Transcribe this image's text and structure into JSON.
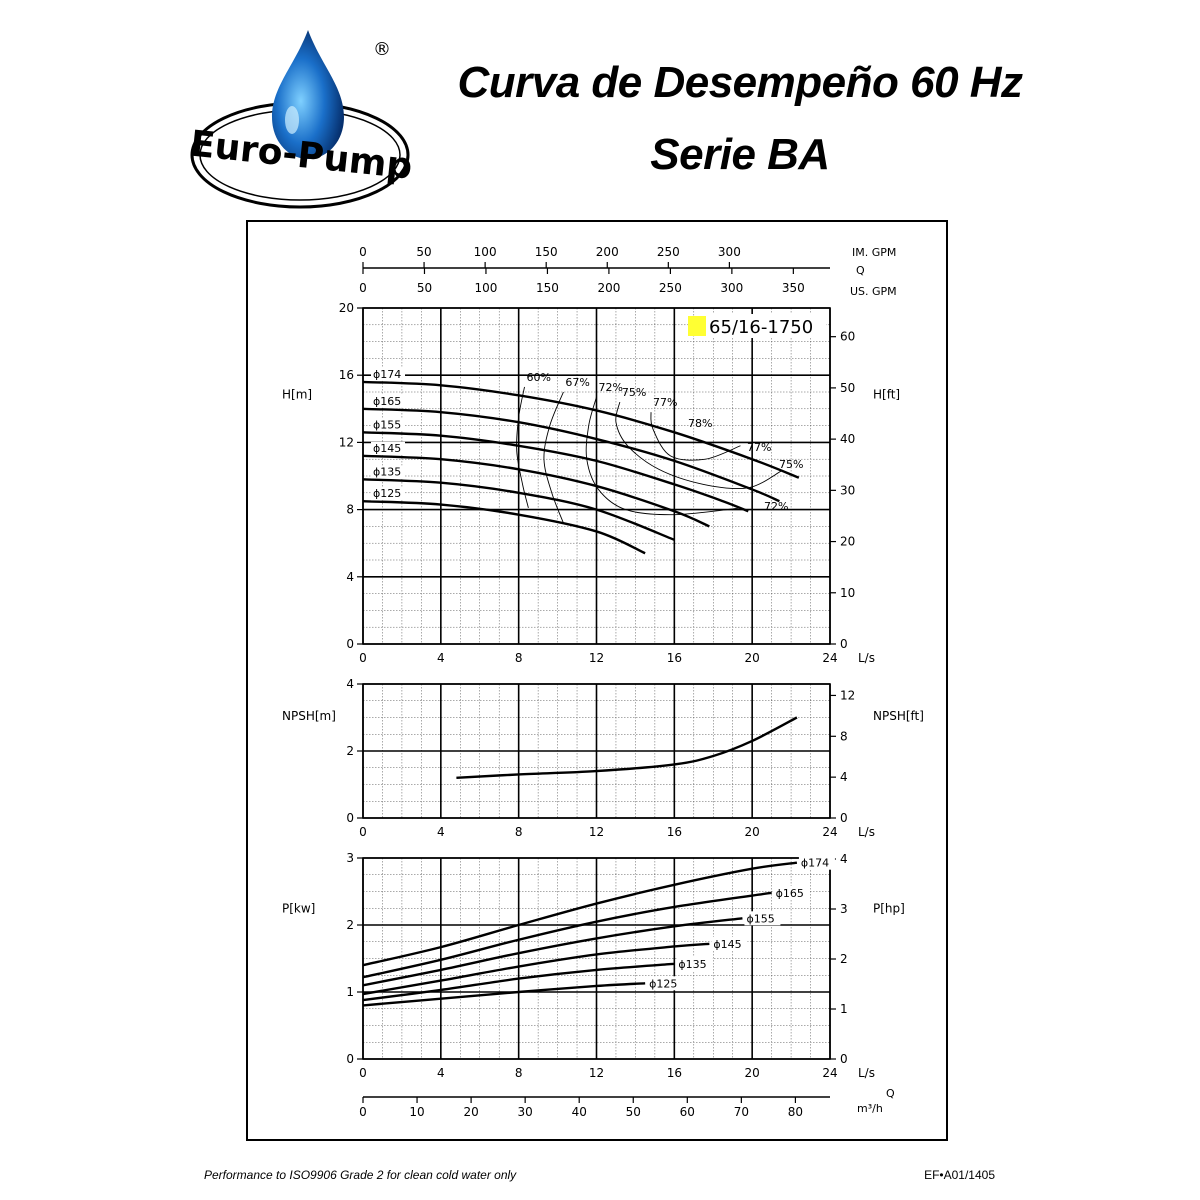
{
  "header": {
    "brand": "Euro-Pump",
    "registered": "®",
    "title_line1": "Curva de Desempeño 60 Hz",
    "title_line2": "Serie BA"
  },
  "footer": {
    "note": "Performance to ISO9906 Grade 2 for clean cold water only",
    "code": "EF•A01/1405"
  },
  "colors": {
    "model_badge": "#ffff33",
    "ink": "#000000",
    "drop_blue": "#1a6fc9"
  },
  "chart_data": {
    "type": "line",
    "model": "65/16-1750",
    "top_axes": {
      "im_gpm_label": "IM. GPM",
      "q_label": "Q",
      "us_gpm_label": "US. GPM",
      "im_gpm_ticks": [
        0,
        50,
        100,
        150,
        200,
        250,
        300
      ],
      "us_gpm_ticks": [
        0,
        50,
        100,
        150,
        200,
        250,
        300,
        350
      ]
    },
    "x_unit": "L/s",
    "x_ticks": [
      0,
      4,
      8,
      12,
      16,
      20,
      24
    ],
    "xlim": [
      0,
      24
    ],
    "bottom_axis": {
      "label": "m³/h",
      "q_label": "Q",
      "ticks": [
        0,
        10,
        20,
        30,
        40,
        50,
        60,
        70,
        80
      ]
    },
    "head": {
      "ylabel_left": "H[m]",
      "ylabel_right": "H[ft]",
      "ylim": [
        0,
        20
      ],
      "yticks_left": [
        0,
        4,
        8,
        12,
        16,
        20
      ],
      "yticks_right": [
        0,
        10,
        20,
        30,
        40,
        50,
        60
      ],
      "series": [
        {
          "name": "ϕ174",
          "x": [
            0,
            4,
            8,
            12,
            16,
            20,
            22.4
          ],
          "y": [
            15.6,
            15.4,
            14.8,
            13.9,
            12.6,
            11,
            9.9
          ]
        },
        {
          "name": "ϕ165",
          "x": [
            0,
            4,
            8,
            12,
            16,
            20,
            21.4
          ],
          "y": [
            14,
            13.8,
            13.2,
            12.2,
            10.9,
            9.2,
            8.5
          ]
        },
        {
          "name": "ϕ155",
          "x": [
            0,
            4,
            8,
            12,
            16,
            18.5,
            19.8
          ],
          "y": [
            12.6,
            12.4,
            11.8,
            10.9,
            9.5,
            8.5,
            7.9
          ]
        },
        {
          "name": "ϕ145",
          "x": [
            0,
            4,
            8,
            12,
            16,
            17.8
          ],
          "y": [
            11.2,
            11,
            10.4,
            9.4,
            7.9,
            7.0
          ]
        },
        {
          "name": "ϕ135",
          "x": [
            0,
            4,
            8,
            12,
            16
          ],
          "y": [
            9.8,
            9.6,
            9.0,
            8.0,
            6.2
          ]
        },
        {
          "name": "ϕ125",
          "x": [
            0,
            4,
            8,
            12,
            14.5
          ],
          "y": [
            8.5,
            8.3,
            7.7,
            6.7,
            5.4
          ]
        }
      ],
      "efficiency": [
        {
          "label": "60%",
          "x": [
            8.3,
            8.0,
            7.9,
            8.2,
            8.5
          ],
          "y": [
            15.3,
            13.5,
            11.5,
            9.5,
            8.1
          ]
        },
        {
          "label": "67%",
          "x": [
            10.3,
            9.6,
            9.3,
            9.7,
            10.3
          ],
          "y": [
            15.0,
            13.0,
            11.0,
            9.0,
            7.2
          ]
        },
        {
          "label": "72%",
          "x": [
            12.0,
            11.6,
            11.5,
            12.1,
            13.5,
            16.0,
            19.4
          ],
          "y": [
            14.7,
            13.0,
            11.0,
            9.2,
            8.0,
            7.7,
            8.1
          ]
        },
        {
          "label": "75%",
          "x": [
            13.2,
            13.0,
            13.6,
            15.2,
            17.5,
            19.8,
            21.5
          ],
          "y": [
            14.4,
            13.2,
            11.8,
            10.4,
            9.5,
            9.3,
            10.3
          ]
        },
        {
          "label": "77%",
          "x": [
            14.8,
            14.9,
            15.8,
            17.6,
            19.4
          ],
          "y": [
            13.8,
            12.8,
            11.2,
            11.0,
            11.8
          ]
        }
      ],
      "labels": {
        "eff_78": "78%",
        "eff_77_right": "77%",
        "eff_75_right": "75%",
        "eff_72_right": "72%"
      }
    },
    "npsh": {
      "ylabel_left": "NPSH[m]",
      "ylabel_right": "NPSH[ft]",
      "ylim": [
        0,
        4
      ],
      "yticks_left": [
        0,
        2,
        4
      ],
      "yticks_right": [
        0,
        4,
        8,
        12
      ],
      "series": [
        {
          "x": [
            4.8,
            8,
            12,
            16,
            18,
            20,
            22.3
          ],
          "y": [
            1.2,
            1.3,
            1.4,
            1.6,
            1.85,
            2.3,
            3.0
          ]
        }
      ]
    },
    "power": {
      "ylabel_left": "P[kw]",
      "ylabel_right": "P[hp]",
      "ylim": [
        0,
        3
      ],
      "yticks_left": [
        0,
        1,
        2,
        3
      ],
      "yticks_right": [
        0,
        1,
        2,
        3,
        4
      ],
      "series": [
        {
          "name": "ϕ174",
          "x": [
            0,
            4,
            8,
            12,
            16,
            20,
            22.3
          ],
          "y": [
            1.4,
            1.67,
            2.0,
            2.32,
            2.6,
            2.84,
            2.93
          ]
        },
        {
          "name": "ϕ165",
          "x": [
            0,
            4,
            8,
            12,
            16,
            21
          ],
          "y": [
            1.22,
            1.48,
            1.78,
            2.05,
            2.27,
            2.48
          ]
        },
        {
          "name": "ϕ155",
          "x": [
            0,
            4,
            8,
            12,
            16,
            19.5
          ],
          "y": [
            1.1,
            1.33,
            1.58,
            1.8,
            1.98,
            2.1
          ]
        },
        {
          "name": "ϕ145",
          "x": [
            0,
            4,
            8,
            12,
            16,
            17.8
          ],
          "y": [
            0.97,
            1.17,
            1.38,
            1.56,
            1.68,
            1.72
          ]
        },
        {
          "name": "ϕ135",
          "x": [
            0,
            4,
            8,
            12,
            16
          ],
          "y": [
            0.88,
            1.03,
            1.2,
            1.33,
            1.42
          ]
        },
        {
          "name": "ϕ125",
          "x": [
            0,
            4,
            8,
            12,
            14.5
          ],
          "y": [
            0.8,
            0.9,
            1.0,
            1.09,
            1.13
          ]
        }
      ]
    }
  }
}
